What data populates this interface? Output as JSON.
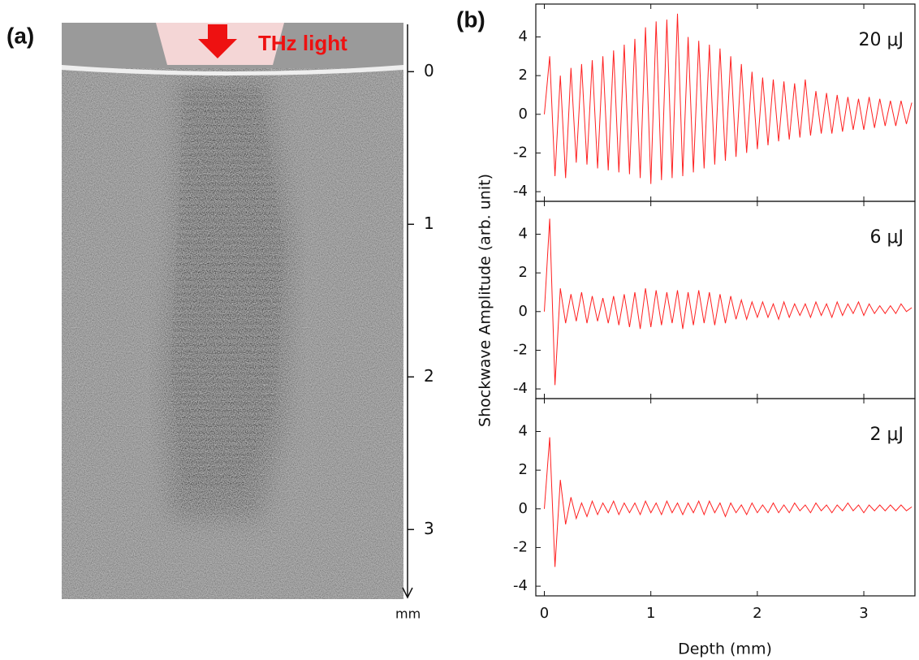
{
  "chart_data": [
    {
      "type": "image",
      "title": "(a)",
      "annotation": "THz light",
      "ylabel": "mm",
      "ylim": [
        -0.31,
        3.44
      ],
      "yticks": [
        0,
        1,
        2,
        3
      ]
    },
    {
      "type": "line",
      "title": "(b)",
      "xlabel": "Depth (mm)",
      "ylabel": "Shockwave Amplitude (arb. unit)",
      "x": [
        0,
        0.05,
        0.1,
        0.15,
        0.2,
        0.25,
        0.3,
        0.35,
        0.4,
        0.45,
        0.5,
        0.55,
        0.6,
        0.65,
        0.7,
        0.75,
        0.8,
        0.85,
        0.9,
        0.95,
        1,
        1.05,
        1.1,
        1.15,
        1.2,
        1.25,
        1.3,
        1.35,
        1.4,
        1.45,
        1.5,
        1.55,
        1.6,
        1.65,
        1.7,
        1.75,
        1.8,
        1.85,
        1.9,
        1.95,
        2,
        2.05,
        2.1,
        2.15,
        2.2,
        2.25,
        2.3,
        2.35,
        2.4,
        2.45,
        2.5,
        2.55,
        2.6,
        2.65,
        2.7,
        2.75,
        2.8,
        2.85,
        2.9,
        2.95,
        3,
        3.05,
        3.1,
        3.15,
        3.2,
        3.25,
        3.3,
        3.35,
        3.4,
        3.45
      ],
      "xlim": [
        -0.08,
        3.48
      ],
      "xticks": [
        0,
        1,
        2,
        3
      ],
      "ylim": [
        -4.5,
        5.7
      ],
      "yticks": [
        -4,
        -2,
        0,
        2,
        4
      ],
      "series": [
        {
          "name": "20 μJ",
          "color": "#ff2020",
          "values": [
            0,
            3.0,
            -3.2,
            2.0,
            -3.3,
            2.4,
            -2.5,
            2.6,
            -2.6,
            2.8,
            -2.8,
            3.0,
            -2.9,
            3.3,
            -3.0,
            3.6,
            -3.1,
            3.9,
            -3.3,
            4.5,
            -3.6,
            4.8,
            -3.4,
            4.9,
            -3.3,
            5.2,
            -3.2,
            4.0,
            -3.0,
            3.8,
            -2.8,
            3.6,
            -2.6,
            3.4,
            -2.4,
            3.0,
            -2.2,
            2.6,
            -2.0,
            2.2,
            -1.8,
            1.9,
            -1.6,
            1.8,
            -1.4,
            1.7,
            -1.3,
            1.6,
            -1.2,
            1.8,
            -1.1,
            1.2,
            -1.0,
            1.1,
            -1.0,
            1.0,
            -0.9,
            0.9,
            -0.8,
            0.8,
            -0.8,
            0.9,
            -0.7,
            0.8,
            -0.6,
            0.7,
            -0.6,
            0.7,
            -0.5,
            0.6
          ]
        },
        {
          "name": "6 μJ",
          "color": "#ff2020",
          "values": [
            0,
            4.8,
            -3.8,
            1.2,
            -0.6,
            0.9,
            -0.5,
            1.0,
            -0.6,
            0.8,
            -0.5,
            0.7,
            -0.6,
            0.8,
            -0.7,
            0.9,
            -0.8,
            1.0,
            -0.9,
            1.2,
            -0.8,
            1.1,
            -0.7,
            1.0,
            -0.6,
            1.1,
            -0.9,
            1.0,
            -0.7,
            1.1,
            -0.6,
            1.0,
            -0.7,
            0.9,
            -0.6,
            0.8,
            -0.4,
            0.6,
            -0.4,
            0.5,
            -0.3,
            0.5,
            -0.3,
            0.4,
            -0.4,
            0.5,
            -0.3,
            0.4,
            -0.2,
            0.4,
            -0.3,
            0.5,
            -0.2,
            0.4,
            -0.3,
            0.5,
            -0.2,
            0.4,
            -0.1,
            0.5,
            -0.2,
            0.4,
            -0.1,
            0.3,
            -0.1,
            0.3,
            -0.1,
            0.4,
            0.0,
            0.2
          ]
        },
        {
          "name": "2 μJ",
          "color": "#ff2020",
          "values": [
            0,
            3.7,
            -3.0,
            1.5,
            -0.8,
            0.6,
            -0.5,
            0.3,
            -0.4,
            0.4,
            -0.3,
            0.3,
            -0.2,
            0.4,
            -0.3,
            0.3,
            -0.2,
            0.3,
            -0.3,
            0.4,
            -0.2,
            0.3,
            -0.3,
            0.4,
            -0.2,
            0.3,
            -0.3,
            0.3,
            -0.2,
            0.4,
            -0.3,
            0.4,
            -0.2,
            0.3,
            -0.4,
            0.3,
            -0.2,
            0.2,
            -0.3,
            0.3,
            -0.2,
            0.2,
            -0.2,
            0.3,
            -0.2,
            0.2,
            -0.2,
            0.3,
            -0.1,
            0.2,
            -0.2,
            0.3,
            -0.1,
            0.2,
            -0.2,
            0.2,
            -0.1,
            0.3,
            -0.1,
            0.2,
            -0.2,
            0.2,
            -0.1,
            0.2,
            -0.1,
            0.2,
            -0.1,
            0.2,
            -0.1,
            0.1
          ]
        }
      ]
    }
  ]
}
